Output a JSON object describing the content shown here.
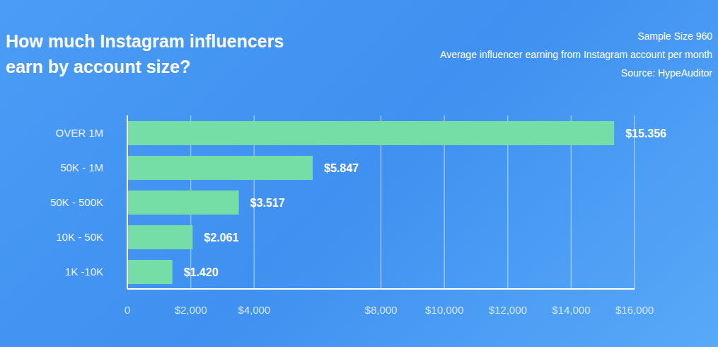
{
  "chart_data": {
    "type": "bar",
    "orientation": "horizontal",
    "title": "How much Instagram influencers earn by account size?",
    "annotations": [
      "Sample Size 960",
      "Average influencer earning from Instagram account per month",
      "Source: HypeAuditor"
    ],
    "categories": [
      "OVER 1M",
      "50K - 1M",
      "50K - 500K",
      "10K - 50K",
      "1K -10K"
    ],
    "values": [
      15356,
      5847,
      3517,
      2061,
      1420
    ],
    "value_labels": [
      "$15.356",
      "$5.847",
      "$3.517",
      "$2.061",
      "$1.420"
    ],
    "color": "#74dea6",
    "xlim": [
      0,
      16000
    ],
    "xticks": [
      0,
      {
        "value": 2000,
        "label": "$2,000"
      },
      {
        "value": 4000,
        "label": "$4,000"
      },
      {
        "value": 8000,
        "label": "$8,000"
      },
      {
        "value": 10000,
        "label": "$10,000"
      },
      {
        "value": 12000,
        "label": "$12,000"
      },
      {
        "value": 14000,
        "label": "$14,000"
      },
      {
        "value": 16000,
        "label": "$16,000"
      }
    ],
    "grid": true,
    "data_labels": true
  }
}
